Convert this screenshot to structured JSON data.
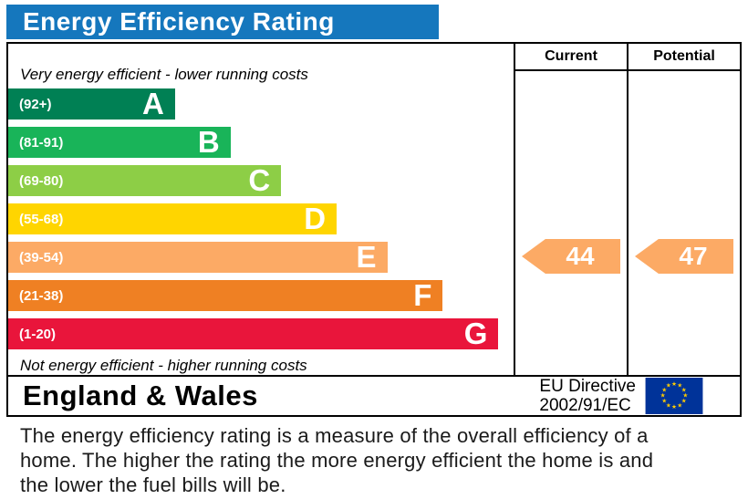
{
  "title": "Energy Efficiency Rating",
  "chart_data": {
    "type": "bar",
    "title": "Energy Efficiency Rating",
    "columns": [
      "Current",
      "Potential"
    ],
    "top_note": "Very energy efficient - lower running costs",
    "bottom_note": "Not energy efficient - higher running costs",
    "bands": [
      {
        "letter": "A",
        "range": "(92+)",
        "color": "#008054",
        "width_pct": 33
      },
      {
        "letter": "B",
        "range": "(81-91)",
        "color": "#19b459",
        "width_pct": 44
      },
      {
        "letter": "C",
        "range": "(69-80)",
        "color": "#8dce46",
        "width_pct": 54
      },
      {
        "letter": "D",
        "range": "(55-68)",
        "color": "#ffd500",
        "width_pct": 65
      },
      {
        "letter": "E",
        "range": "(39-54)",
        "color": "#fcaa65",
        "width_pct": 75
      },
      {
        "letter": "F",
        "range": "(21-38)",
        "color": "#ef8023",
        "width_pct": 86
      },
      {
        "letter": "G",
        "range": "(1-20)",
        "color": "#e9153b",
        "width_pct": 97
      }
    ],
    "current": {
      "label": "Current",
      "value": "44",
      "band": "E",
      "color": "#fcaa65"
    },
    "potential": {
      "label": "Potential",
      "value": "47",
      "band": "E",
      "color": "#fcaa65"
    }
  },
  "footer": {
    "region": "England & Wales",
    "directive": [
      "EU Directive",
      "2002/91/EC"
    ]
  },
  "description": "The energy efficiency rating is a measure of the overall efficiency of a home.  The higher the rating the more energy efficient the home is and the lower the fuel bills will be.",
  "colors": {
    "title_bg": "#1577bd",
    "title_text": "#ffffff",
    "border": "#000000",
    "flag_bg": "#003399",
    "flag_star": "#ffcc00"
  }
}
